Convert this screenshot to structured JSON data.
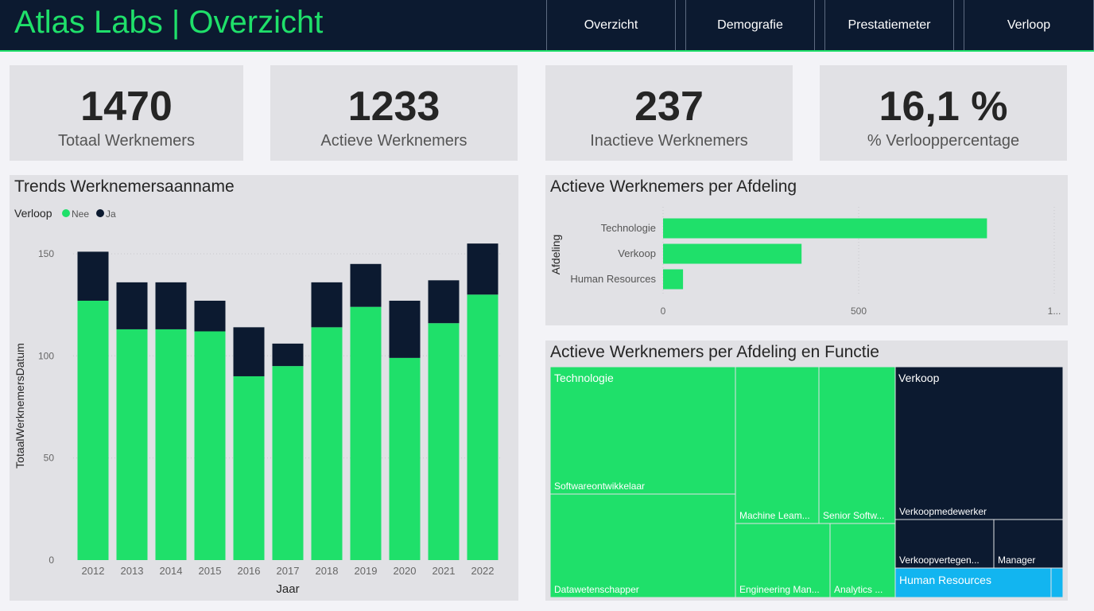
{
  "header": {
    "title": "Atlas Labs | Overzicht",
    "nav": [
      "Overzicht",
      "Demografie",
      "Prestatiemeter",
      "Verloop"
    ]
  },
  "kpis": [
    {
      "value": "1470",
      "label": "Totaal Werknemers"
    },
    {
      "value": "1233",
      "label": "Actieve Werknemers"
    },
    {
      "value": "237",
      "label": "Inactieve Werknemers"
    },
    {
      "value": "16,1 %",
      "label": "% Verlooppercentage"
    }
  ],
  "colors": {
    "nee": "#1fe06a",
    "ja": "#0c1a30",
    "hr": "#12b5f0"
  },
  "chart_data": [
    {
      "type": "bar",
      "stacked": true,
      "title": "Trends Werknemersaanname",
      "legend_title": "Verloop",
      "categories": [
        "2012",
        "2013",
        "2014",
        "2015",
        "2016",
        "2017",
        "2018",
        "2019",
        "2020",
        "2021",
        "2022"
      ],
      "series": [
        {
          "name": "Nee",
          "values": [
            127,
            113,
            113,
            112,
            90,
            95,
            114,
            124,
            99,
            116,
            130
          ]
        },
        {
          "name": "Ja",
          "values": [
            24,
            23,
            23,
            15,
            24,
            11,
            22,
            21,
            28,
            21,
            25
          ]
        }
      ],
      "xlabel": "Jaar",
      "ylabel": "TotaalWerknemersDatum",
      "ylim": [
        0,
        155
      ],
      "yticks": [
        0,
        50,
        100,
        150
      ]
    },
    {
      "type": "bar",
      "orientation": "horizontal",
      "title": "Actieve Werknemers per Afdeling",
      "categories": [
        "Technologie",
        "Verkoop",
        "Human Resources"
      ],
      "values": [
        828,
        354,
        51
      ],
      "ylabel": "Afdeling",
      "xticks": [
        "0",
        "500",
        "1..."
      ],
      "xlim": [
        0,
        1000
      ]
    },
    {
      "type": "treemap",
      "title": "Actieve Werknemers per Afdeling en Functie",
      "groups": [
        {
          "name": "Technologie",
          "items": [
            "Softwareontwikkelaar",
            "Datawetenschapper",
            "Machine Leam...",
            "Engineering Man...",
            "Senior Softw...",
            "Analytics ..."
          ]
        },
        {
          "name": "Verkoop",
          "items": [
            "Verkoopmedewerker",
            "Verkoopvertegen...",
            "Manager"
          ]
        },
        {
          "name": "Human Resources",
          "items": []
        }
      ]
    }
  ]
}
